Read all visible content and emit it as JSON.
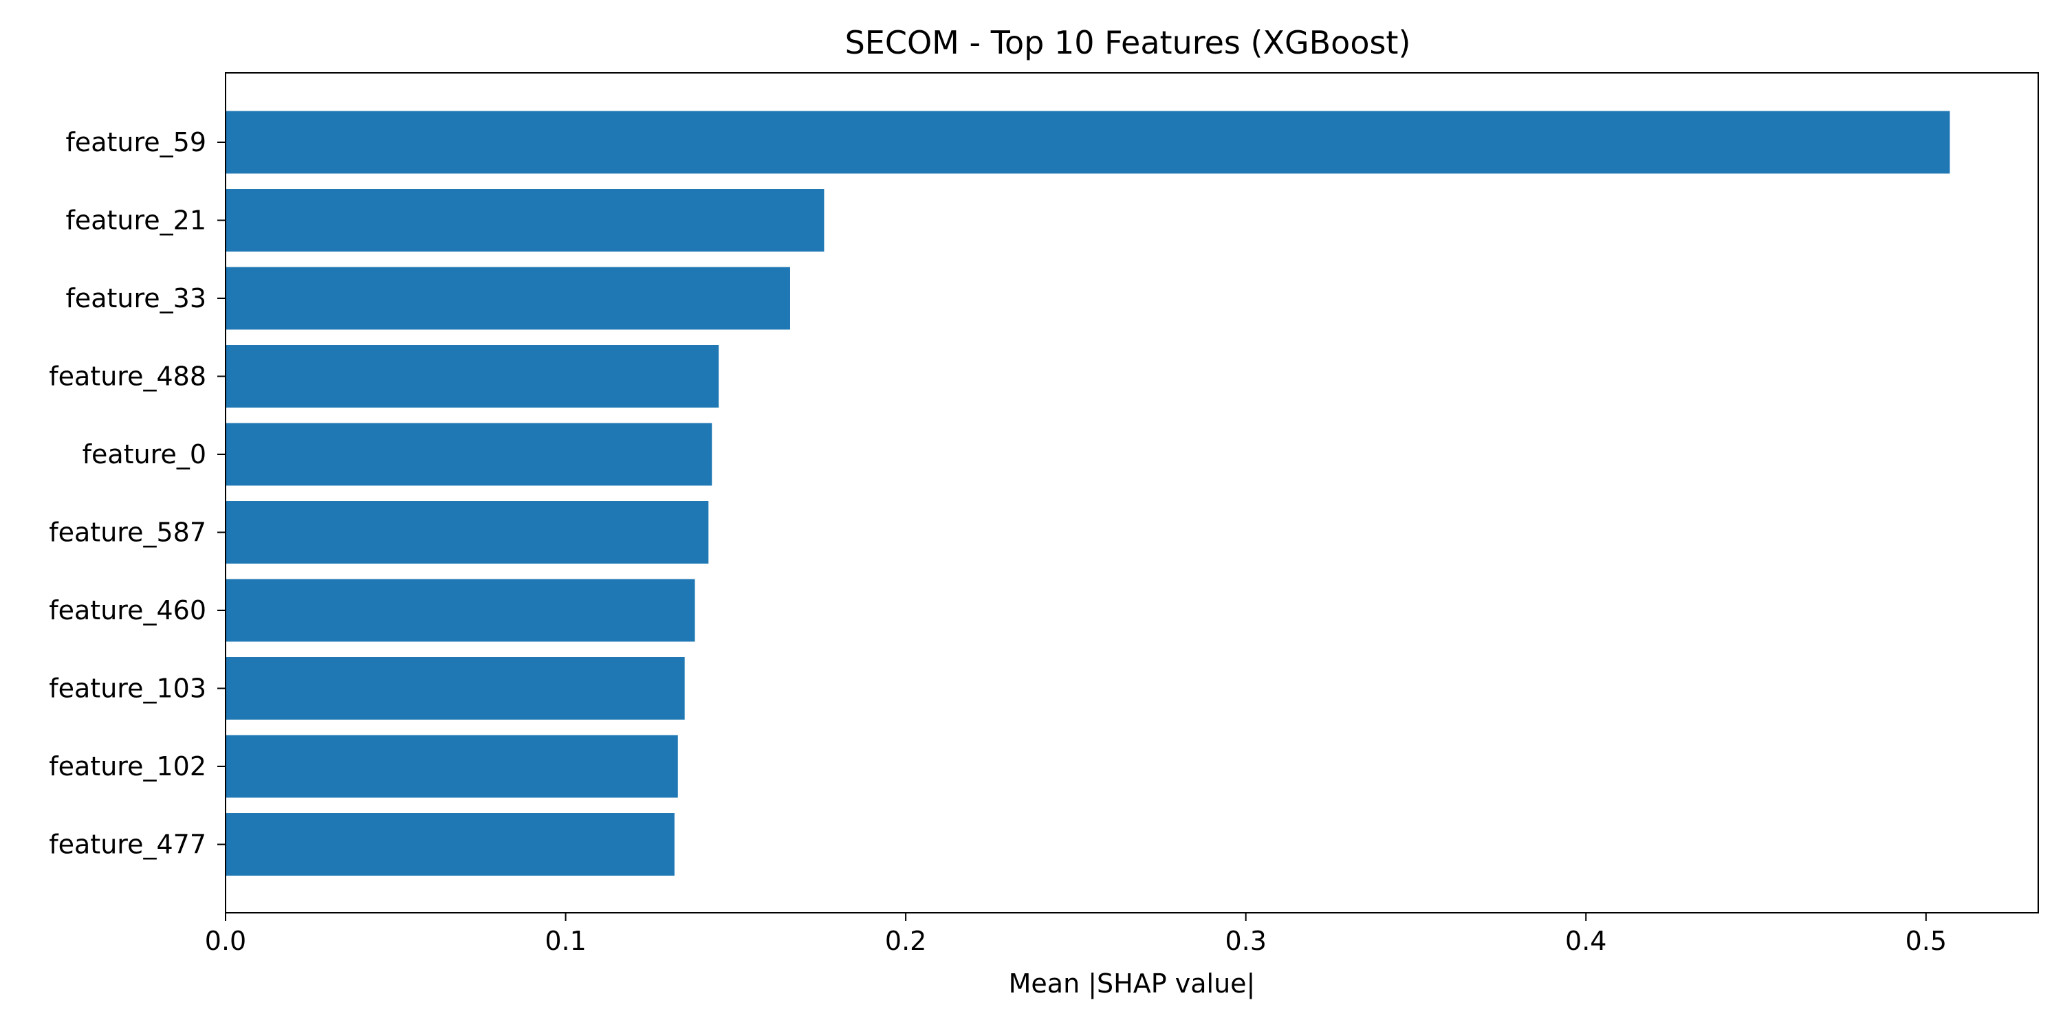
{
  "chart_data": {
    "type": "bar",
    "orientation": "horizontal",
    "title": "SECOM - Top 10 Features (XGBoost)",
    "xlabel": "Mean |SHAP value|",
    "ylabel": "",
    "categories": [
      "feature_59",
      "feature_21",
      "feature_33",
      "feature_488",
      "feature_0",
      "feature_587",
      "feature_460",
      "feature_103",
      "feature_102",
      "feature_477"
    ],
    "values": [
      0.507,
      0.176,
      0.166,
      0.145,
      0.143,
      0.142,
      0.138,
      0.135,
      0.133,
      0.132
    ],
    "xlim": [
      0.0,
      0.533
    ],
    "xticks": [
      0.0,
      0.1,
      0.2,
      0.3,
      0.4,
      0.5
    ],
    "xtick_labels": [
      "0.0",
      "0.1",
      "0.2",
      "0.3",
      "0.4",
      "0.5"
    ],
    "bar_color": "#1f77b4",
    "grid": false,
    "legend": "none"
  }
}
